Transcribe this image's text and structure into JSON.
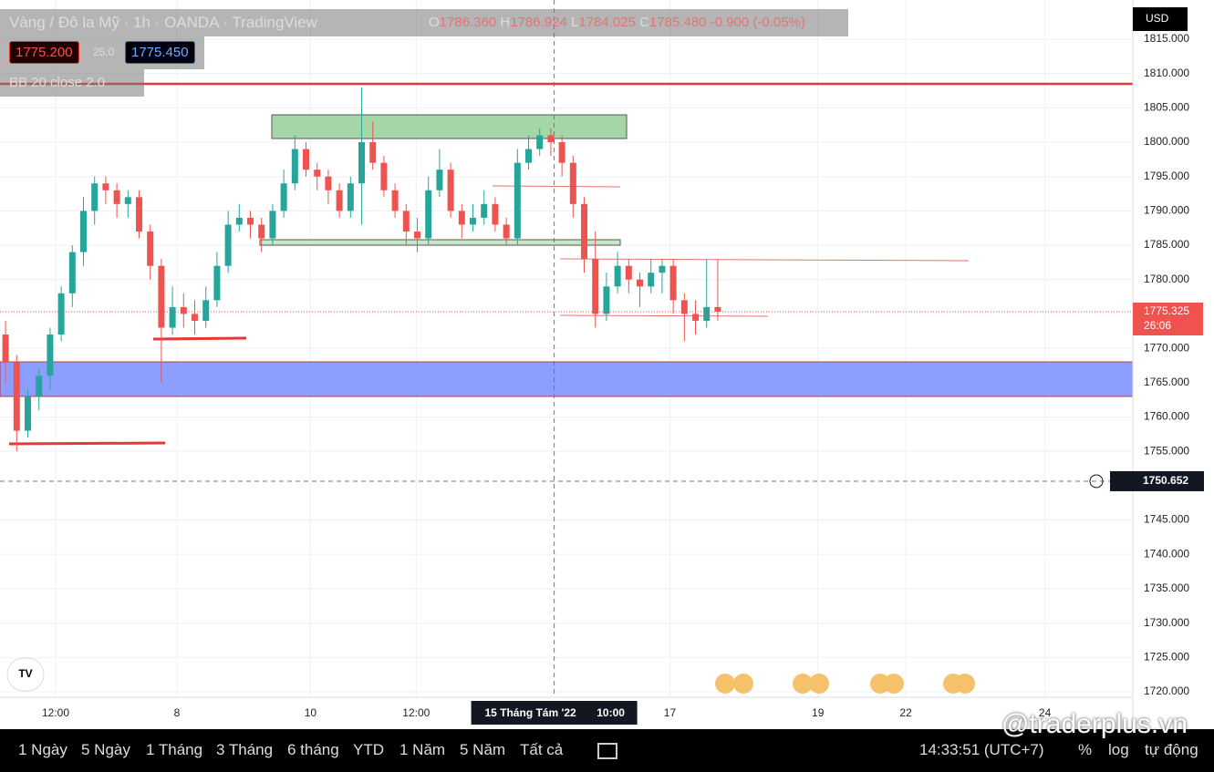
{
  "chart_data": {
    "type": "candlestick",
    "title": "Vàng / Đô la Mỹ · 1h · OANDA · TradingView",
    "ohlc_labels": {
      "o": "O",
      "o_value": "1786.360",
      "h": "H",
      "h_value": "1786.924",
      "l": "L",
      "l_value": "1784.025",
      "c": "C",
      "c_value": "1785.480",
      "change": "-0.900 (-0.05%)"
    },
    "bid": "1775.200",
    "spread": "25.0",
    "ask": "1775.450",
    "indicator": "BB 20 close 2.0",
    "currency": "USD",
    "up_color": "#26a69a",
    "down_color": "#ef5350",
    "xlim": [
      -0.5,
      101.3
    ],
    "xticks": [
      {
        "value": 4.5,
        "label": "12:00"
      },
      {
        "value": 15.4,
        "label": "8"
      },
      {
        "value": 27.4,
        "label": "10"
      },
      {
        "value": 36.9,
        "label": "12:00"
      },
      {
        "value": 59.7,
        "label": "17"
      },
      {
        "value": 73,
        "label": "19"
      },
      {
        "value": 80.9,
        "label": "22"
      },
      {
        "value": 93.4,
        "label": "24"
      }
    ],
    "crosshair": {
      "x": 49.3,
      "x_label": "15 Tháng Tám '22",
      "x_time": "10:00",
      "y": 1750.652,
      "y_label": "1750.652"
    },
    "last_price": 1775.325,
    "last_price_label": "1775.325",
    "countdown": "26:06",
    "ylim": [
      1719.2,
      1820.7
    ],
    "yticks": [
      {
        "value": 1815,
        "label": "1815.000"
      },
      {
        "value": 1810,
        "label": "1810.000"
      },
      {
        "value": 1805,
        "label": "1805.000"
      },
      {
        "value": 1800,
        "label": "1800.000"
      },
      {
        "value": 1795,
        "label": "1795.000"
      },
      {
        "value": 1790,
        "label": "1790.000"
      },
      {
        "value": 1785,
        "label": "1785.000"
      },
      {
        "value": 1780,
        "label": "1780.000"
      },
      {
        "value": 1770,
        "label": "1770.000"
      },
      {
        "value": 1765,
        "label": "1765.000"
      },
      {
        "value": 1760,
        "label": "1760.000"
      },
      {
        "value": 1755,
        "label": "1755.000"
      },
      {
        "value": 1745,
        "label": "1745.000"
      },
      {
        "value": 1740,
        "label": "1740.000"
      },
      {
        "value": 1735,
        "label": "1735.000"
      },
      {
        "value": 1730,
        "label": "1730.000"
      },
      {
        "value": 1725,
        "label": "1725.000"
      },
      {
        "value": 1720,
        "label": "1720.000"
      }
    ],
    "grid": true,
    "ohlc": [
      [
        1772,
        1774,
        1765,
        1768
      ],
      [
        1768,
        1769,
        1755,
        1758
      ],
      [
        1758,
        1764,
        1757,
        1763
      ],
      [
        1763,
        1767,
        1761,
        1766
      ],
      [
        1766,
        1773,
        1764,
        1772
      ],
      [
        1772,
        1779,
        1771,
        1778
      ],
      [
        1778,
        1785,
        1776,
        1784
      ],
      [
        1784,
        1792,
        1782,
        1790
      ],
      [
        1790,
        1795,
        1788,
        1794
      ],
      [
        1794,
        1795,
        1791,
        1793
      ],
      [
        1793,
        1794,
        1789,
        1791
      ],
      [
        1791,
        1793,
        1789,
        1792
      ],
      [
        1792,
        1793,
        1786,
        1787
      ],
      [
        1787,
        1788,
        1780,
        1782
      ],
      [
        1782,
        1783,
        1765,
        1773
      ],
      [
        1773,
        1779,
        1772,
        1776
      ],
      [
        1776,
        1778,
        1773,
        1775
      ],
      [
        1775,
        1777,
        1772,
        1774
      ],
      [
        1774,
        1779,
        1773,
        1777
      ],
      [
        1777,
        1784,
        1776,
        1782
      ],
      [
        1782,
        1790,
        1781,
        1788
      ],
      [
        1788,
        1791,
        1787,
        1789
      ],
      [
        1789,
        1790,
        1786,
        1788
      ],
      [
        1788,
        1789,
        1784,
        1786
      ],
      [
        1786,
        1791,
        1785,
        1790
      ],
      [
        1790,
        1796,
        1789,
        1794
      ],
      [
        1794,
        1801,
        1793,
        1799
      ],
      [
        1799,
        1800,
        1795,
        1796
      ],
      [
        1796,
        1797,
        1793,
        1795
      ],
      [
        1795,
        1796,
        1791,
        1793
      ],
      [
        1793,
        1794,
        1789,
        1790
      ],
      [
        1790,
        1795,
        1789,
        1794
      ],
      [
        1794,
        1808,
        1788,
        1800
      ],
      [
        1800,
        1803,
        1796,
        1797
      ],
      [
        1797,
        1798,
        1792,
        1793
      ],
      [
        1793,
        1794,
        1789,
        1790
      ],
      [
        1790,
        1791,
        1785,
        1787
      ],
      [
        1787,
        1789,
        1784,
        1786
      ],
      [
        1786,
        1795,
        1785,
        1793
      ],
      [
        1793,
        1799,
        1792,
        1796
      ],
      [
        1796,
        1797,
        1789,
        1790
      ],
      [
        1790,
        1791,
        1786,
        1788
      ],
      [
        1788,
        1791,
        1787,
        1789
      ],
      [
        1789,
        1793,
        1788,
        1791
      ],
      [
        1791,
        1792,
        1787,
        1788
      ],
      [
        1788,
        1789,
        1785,
        1786
      ],
      [
        1786,
        1799,
        1785,
        1797
      ],
      [
        1797,
        1801,
        1796,
        1799
      ],
      [
        1799,
        1802,
        1798,
        1801
      ],
      [
        1801,
        1802,
        1798,
        1800
      ],
      [
        1800,
        1801,
        1795,
        1797
      ],
      [
        1797,
        1798,
        1789,
        1791
      ],
      [
        1791,
        1792,
        1781,
        1783
      ],
      [
        1783,
        1787,
        1773,
        1775
      ],
      [
        1775,
        1781,
        1774,
        1779
      ],
      [
        1779,
        1784,
        1778,
        1782
      ],
      [
        1782,
        1783,
        1778,
        1780
      ],
      [
        1780,
        1781,
        1776,
        1779
      ],
      [
        1779,
        1783,
        1778,
        1781
      ],
      [
        1781,
        1783,
        1778,
        1782
      ],
      [
        1782,
        1783,
        1775,
        1777
      ],
      [
        1777,
        1778,
        1771,
        1775
      ],
      [
        1775,
        1777,
        1772,
        1774
      ],
      [
        1774,
        1783,
        1773,
        1776
      ],
      [
        1776,
        1783,
        1774,
        1775.325
      ]
    ]
  },
  "toolbar": {
    "ranges": [
      "1 Ngày",
      "5 Ngày",
      "1 Tháng",
      "3 Tháng",
      "6 tháng",
      "YTD",
      "1 Năm",
      "5 Năm",
      "Tất cả"
    ],
    "clock": "14:33:51 (UTC+7)",
    "percent": "%",
    "log": "log",
    "auto": "tự động"
  },
  "watermark": "@traderplus.vn"
}
